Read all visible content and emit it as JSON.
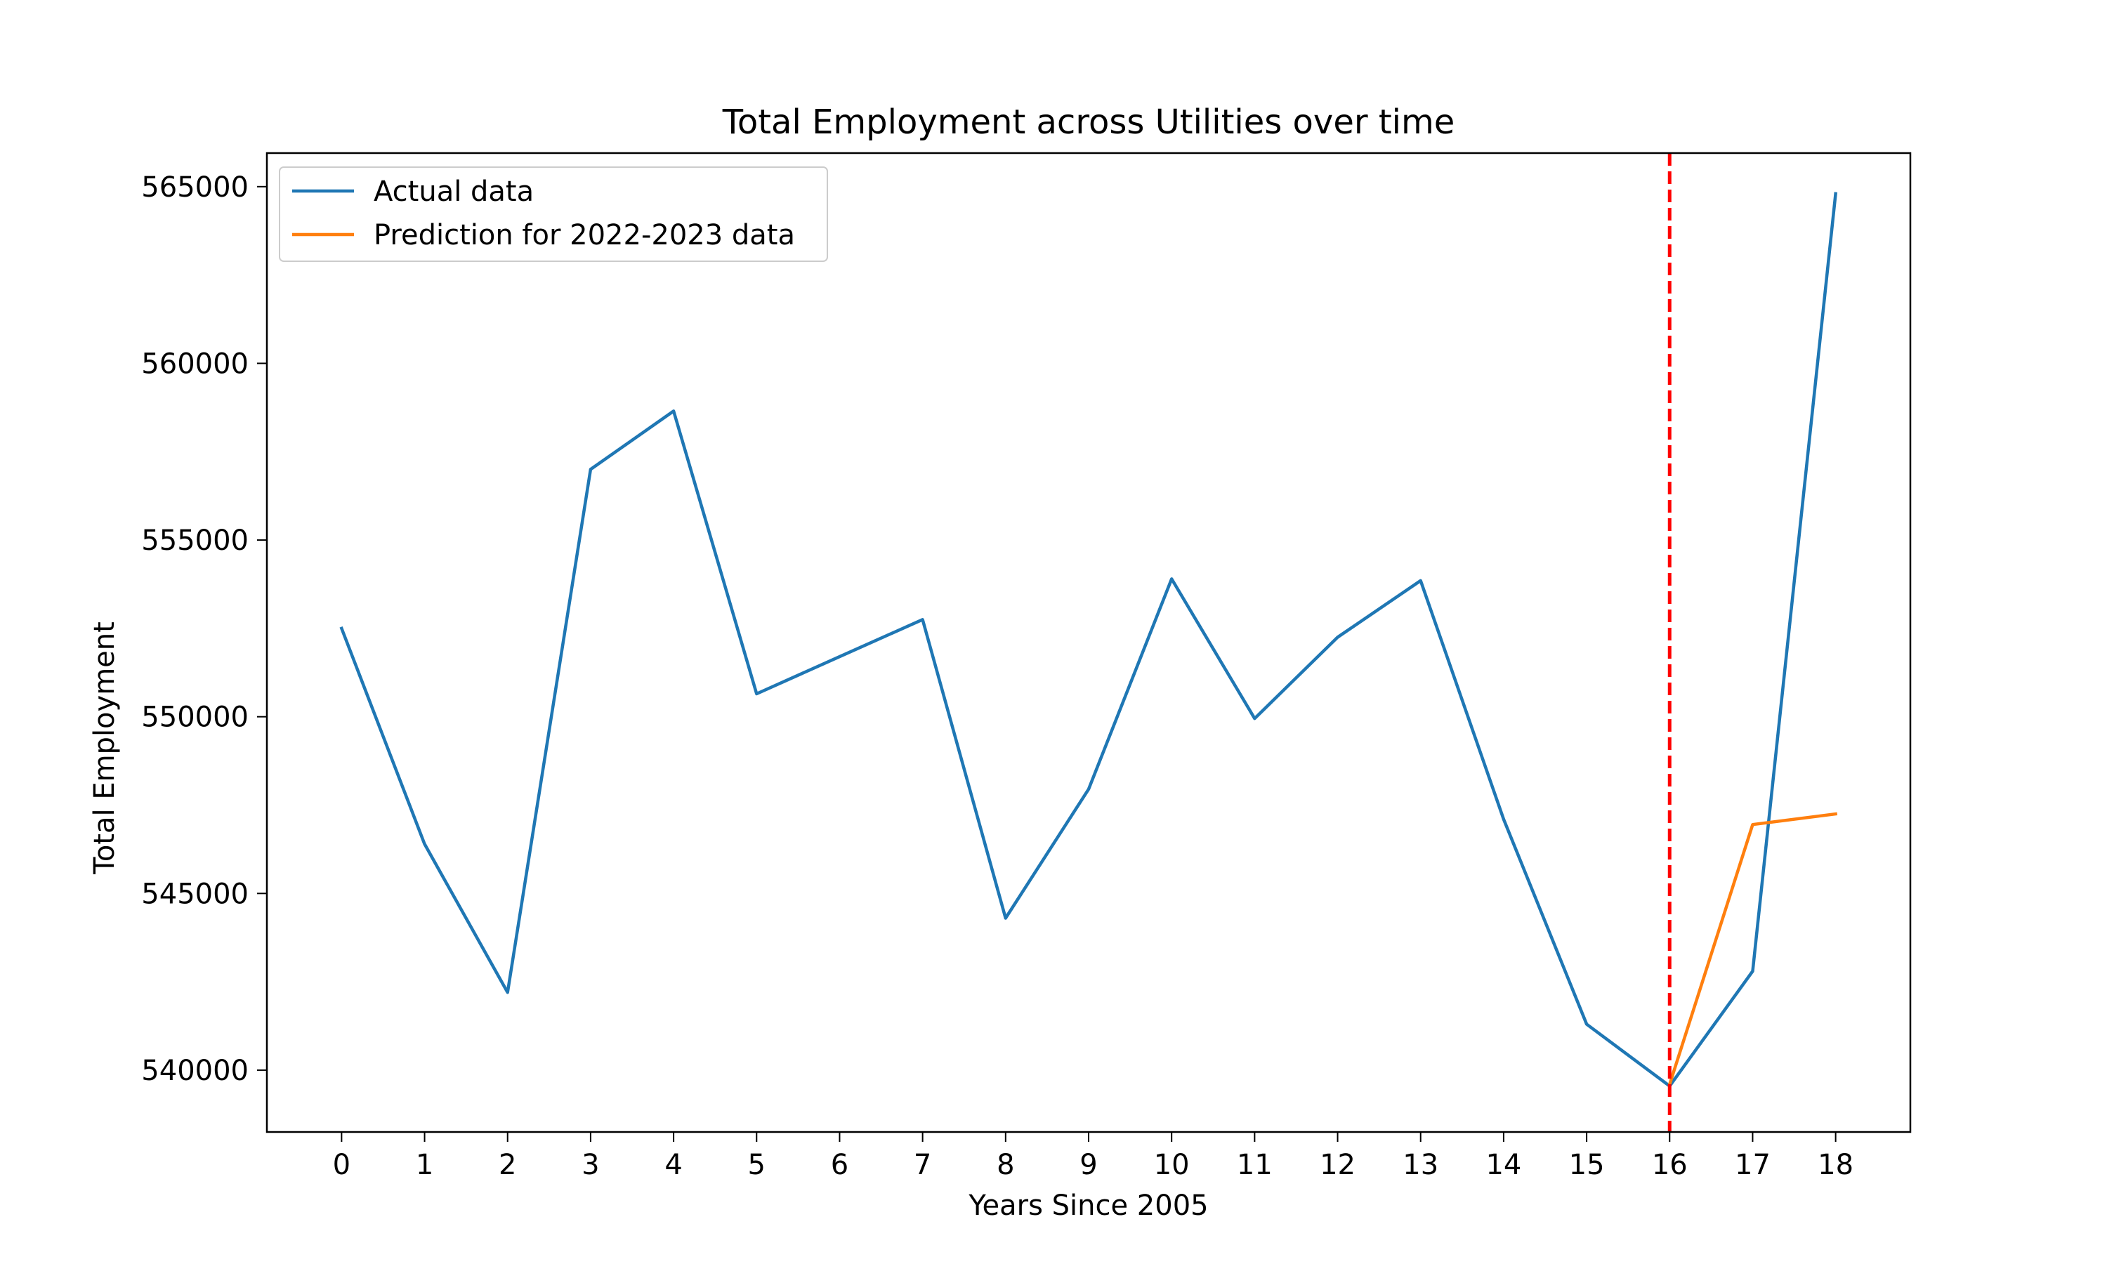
{
  "chart_data": {
    "type": "line",
    "title": "Total Employment across Utilities over time",
    "xlabel": "Years Since 2005",
    "ylabel": "Total Employment",
    "x_ticks": [
      0,
      1,
      2,
      3,
      4,
      5,
      6,
      7,
      8,
      9,
      10,
      11,
      12,
      13,
      14,
      15,
      16,
      17,
      18
    ],
    "y_ticks": [
      540000,
      545000,
      550000,
      555000,
      560000,
      565000
    ],
    "xlim": [
      -0.9,
      18.9
    ],
    "ylim": [
      538250,
      565950
    ],
    "grid": false,
    "legend_position": "top-left",
    "series": [
      {
        "name": "Actual data",
        "color": "#1f77b4",
        "x": [
          0,
          1,
          2,
          3,
          4,
          5,
          6,
          7,
          8,
          9,
          10,
          11,
          12,
          13,
          14,
          15,
          16,
          17,
          18
        ],
        "y": [
          552500,
          546400,
          542200,
          557000,
          558650,
          550650,
          551700,
          552750,
          544300,
          547950,
          553900,
          549950,
          552250,
          553850,
          547100,
          541300,
          539550,
          542800,
          564800
        ]
      },
      {
        "name": "Prediction for 2022-2023 data",
        "color": "#ff7f0e",
        "x": [
          16,
          17,
          18
        ],
        "y": [
          539600,
          546950,
          547250
        ]
      }
    ],
    "annotations": [
      {
        "type": "vline",
        "x": 16,
        "color": "#ff0000",
        "style": "dashed"
      }
    ]
  }
}
